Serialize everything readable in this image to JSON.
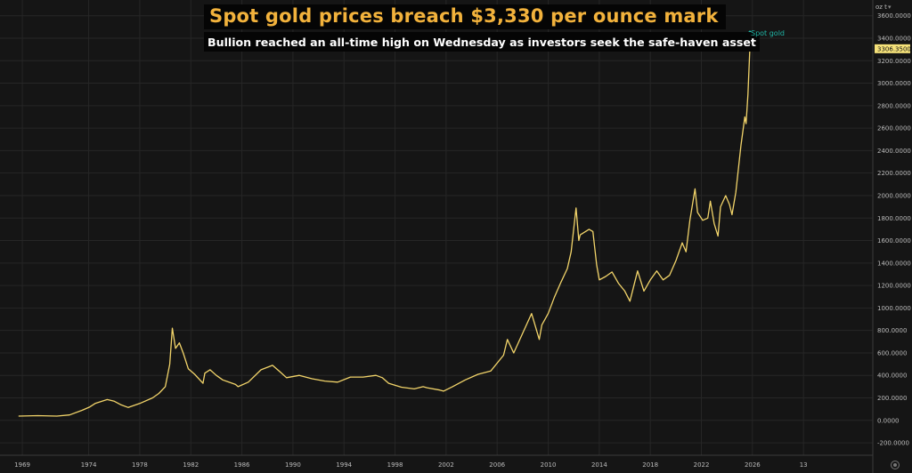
{
  "header": {
    "title": "Spot gold prices breach $3,330 per ounce mark",
    "subtitle": "Bullion reached an all-time high on Wednesday as investors seek the safe-haven asset",
    "unit": "oz t",
    "series_label": "Spot gold"
  },
  "colors": {
    "background": "#151515",
    "line": "#f2d46a",
    "grid": "#262626",
    "axis_text": "#bbbbbb",
    "title": "#f2b23c",
    "price_tag": "#f6e27a",
    "series_label": "#1fb5a5"
  },
  "icons": {
    "arrow": "arrow-up-icon",
    "settings": "settings-gear-icon"
  },
  "chart_data": {
    "type": "line",
    "title": "Spot gold prices breach $3,330 per ounce mark",
    "subtitle": "Bullion reached an all-time high on Wednesday as investors seek the safe-haven asset",
    "series": [
      {
        "name": "Spot gold",
        "x": [
          1968.0,
          1969.5,
          1971.0,
          1972.0,
          1973.0,
          1973.6,
          1974.0,
          1974.95,
          1975.5,
          1976.0,
          1976.6,
          1977.5,
          1978.5,
          1979.0,
          1979.5,
          1979.85,
          1980.05,
          1980.3,
          1980.6,
          1980.9,
          1981.3,
          1981.8,
          1982.45,
          1982.6,
          1983.0,
          1983.5,
          1984.0,
          1985.0,
          1985.2,
          1986.0,
          1987.0,
          1987.9,
          1988.5,
          1989.0,
          1990.0,
          1991.0,
          1992.0,
          1993.0,
          1994.0,
          1995.0,
          1996.0,
          1996.5,
          1997.0,
          1998.0,
          1999.0,
          1999.7,
          2000.0,
          2001.0,
          2001.3,
          2002.0,
          2003.0,
          2004.0,
          2005.0,
          2006.0,
          2006.3,
          2006.8,
          2007.0,
          2008.0,
          2008.2,
          2008.8,
          2009.0,
          2009.5,
          2010.0,
          2010.5,
          2011.0,
          2011.3,
          2011.68,
          2011.9,
          2012.0,
          2012.7,
          2013.0,
          2013.3,
          2013.5,
          2014.0,
          2014.5,
          2015.0,
          2015.5,
          2015.9,
          2016.5,
          2017.0,
          2017.5,
          2018.0,
          2018.5,
          2019.0,
          2019.5,
          2020.0,
          2020.3,
          2020.6,
          2021.0,
          2021.2,
          2021.6,
          2022.0,
          2022.2,
          2022.5,
          2022.8,
          2023.0,
          2023.4,
          2023.7,
          2023.9,
          2024.2,
          2024.6,
          2024.9,
          2025.0,
          2025.15,
          2025.3
        ],
        "y": [
          38,
          42,
          38,
          48,
          90,
          120,
          150,
          185,
          170,
          140,
          115,
          150,
          200,
          240,
          300,
          500,
          820,
          640,
          690,
          600,
          460,
          410,
          330,
          420,
          450,
          400,
          360,
          320,
          300,
          340,
          450,
          490,
          430,
          380,
          400,
          370,
          350,
          340,
          385,
          385,
          400,
          380,
          330,
          295,
          280,
          300,
          290,
          270,
          260,
          300,
          360,
          410,
          440,
          580,
          720,
          600,
          650,
          900,
          950,
          720,
          850,
          950,
          1100,
          1230,
          1350,
          1500,
          1890,
          1600,
          1650,
          1700,
          1680,
          1380,
          1250,
          1280,
          1320,
          1220,
          1150,
          1060,
          1330,
          1150,
          1250,
          1330,
          1250,
          1290,
          1420,
          1580,
          1500,
          1780,
          2060,
          1850,
          1780,
          1800,
          1950,
          1750,
          1640,
          1900,
          2000,
          1920,
          1830,
          2030,
          2450,
          2700,
          2640,
          2900,
          3320
        ]
      }
    ],
    "price_tag": "3306.3500",
    "x_ticks": [
      "1969",
      "1974",
      "1978",
      "1982",
      "1986",
      "1990",
      "1994",
      "1998",
      "2002",
      "2006",
      "2010",
      "2014",
      "2018",
      "2022",
      "2026",
      "13"
    ],
    "x_tick_values": [
      1968.3,
      1973.5,
      1977.5,
      1981.5,
      1985.5,
      1989.5,
      1993.5,
      1997.5,
      2001.5,
      2005.5,
      2009.5,
      2013.5,
      2017.5,
      2021.5,
      2025.5,
      2029.5
    ],
    "y_ticks": [
      "-200.0000",
      "0.0000",
      "200.0000",
      "400.0000",
      "600.0000",
      "800.0000",
      "1000.0000",
      "1200.0000",
      "1400.0000",
      "1600.0000",
      "1800.0000",
      "2000.0000",
      "2200.0000",
      "2400.0000",
      "2600.0000",
      "2800.0000",
      "3000.0000",
      "3200.0000",
      "3400.0000",
      "3600.0000"
    ],
    "y_tick_values": [
      -200,
      0,
      200,
      400,
      600,
      800,
      1000,
      1200,
      1400,
      1600,
      1800,
      2000,
      2200,
      2400,
      2600,
      2800,
      3000,
      3200,
      3400,
      3600
    ],
    "xlim": [
      1966.55,
      2034.93
    ],
    "ylim": [
      -310,
      3740
    ],
    "grid": true,
    "legend": "none"
  }
}
